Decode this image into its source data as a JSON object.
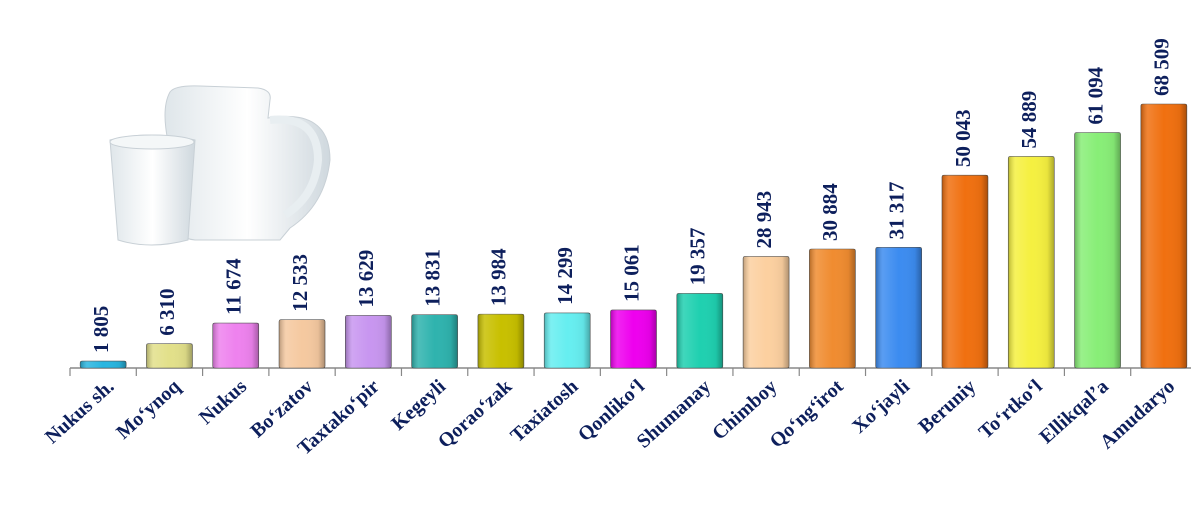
{
  "chart_data": {
    "type": "bar",
    "categories": [
      "Nukus sh.",
      "Mo‘ynoq",
      "Nukus",
      "Bo‘zatov",
      "Taxtako‘pir",
      "Kegeyli",
      "Qorao‘zak",
      "Taxiatosh",
      "Qonliko‘l",
      "Shumanay",
      "Chimboy",
      "Qo‘ng‘irot",
      "Xo‘jayli",
      "Beruniy",
      "To‘rtko‘l",
      "Ellikqal’a",
      "Amudaryo"
    ],
    "values": [
      1805,
      6310,
      11674,
      12533,
      13629,
      13831,
      13984,
      14299,
      15061,
      19357,
      28943,
      30884,
      31317,
      50043,
      54889,
      61094,
      68509
    ],
    "value_labels": [
      "1 805",
      "6 310",
      "11 674",
      "12 533",
      "13 629",
      "13 831",
      "13 984",
      "14 299",
      "15 061",
      "19 357",
      "28 943",
      "30 884",
      "31 317",
      "50 043",
      "54 889",
      "61 094",
      "68 509"
    ],
    "colors": [
      "#29b6e0",
      "#e2e08a",
      "#ee82ee",
      "#f5c9a0",
      "#c896f0",
      "#2fb3ae",
      "#c8c000",
      "#66eef0",
      "#ee00ee",
      "#1fd0b0",
      "#fcd0a0",
      "#f08c30",
      "#3c8cf0",
      "#f07010",
      "#f5f040",
      "#88ee77",
      "#f07010"
    ]
  }
}
